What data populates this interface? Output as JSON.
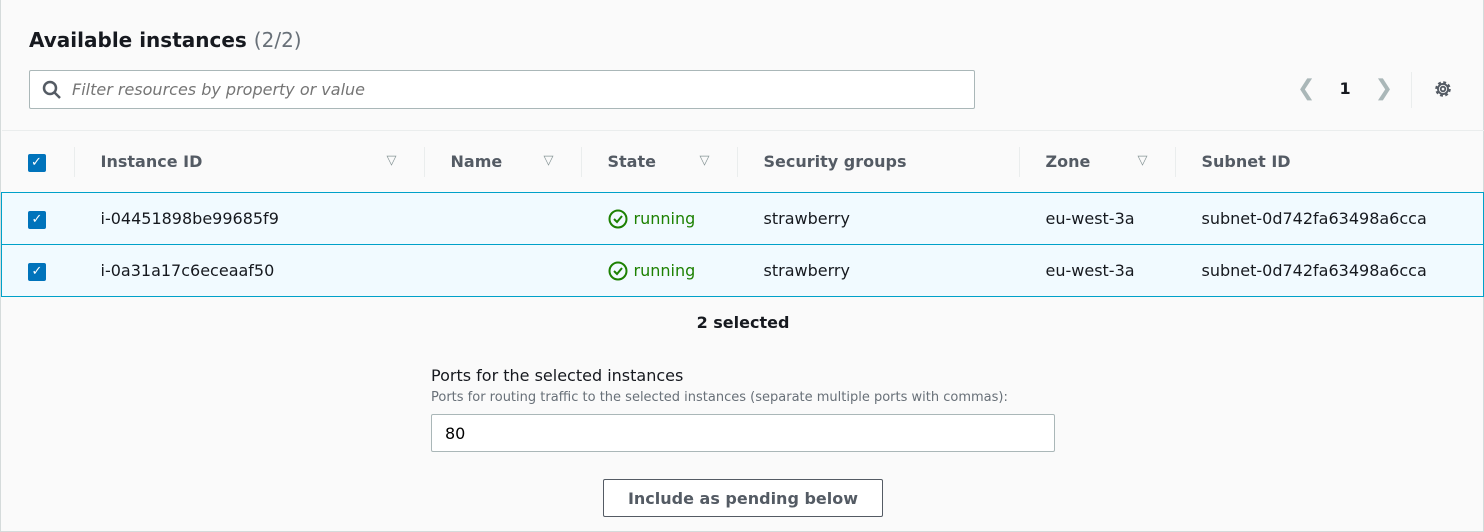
{
  "header": {
    "title": "Available instances",
    "count": "(2/2)"
  },
  "filter": {
    "placeholder": "Filter resources by property or value"
  },
  "pagination": {
    "page": "1"
  },
  "table": {
    "columns": [
      "Instance ID",
      "Name",
      "State",
      "Security groups",
      "Zone",
      "Subnet ID"
    ],
    "rows": [
      {
        "id": "i-04451898be99685f9",
        "name": "",
        "state": "running",
        "sg": "strawberry",
        "zone": "eu-west-3a",
        "subnet": "subnet-0d742fa63498a6cca"
      },
      {
        "id": "i-0a31a17c6eceaaf50",
        "name": "",
        "state": "running",
        "sg": "strawberry",
        "zone": "eu-west-3a",
        "subnet": "subnet-0d742fa63498a6cca"
      }
    ]
  },
  "selection": {
    "text": "2 selected"
  },
  "ports": {
    "label": "Ports for the selected instances",
    "description": "Ports for routing traffic to the selected instances (separate multiple ports with commas):",
    "value": "80"
  },
  "action": {
    "label": "Include as pending below"
  },
  "colors": {
    "accent": "#0073bb",
    "running": "#1d8102",
    "selected_row": "#f1faff"
  }
}
